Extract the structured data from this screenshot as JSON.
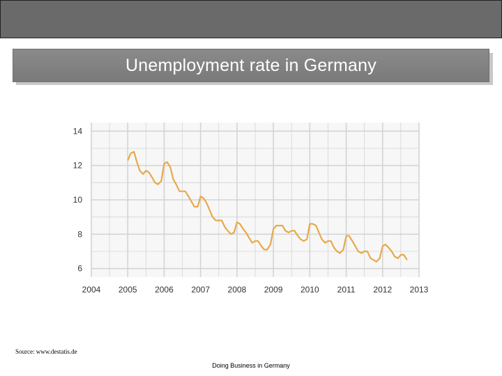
{
  "slide": {
    "title": "Unemployment rate in Germany",
    "source": "Source: www.destatis.de",
    "footer": "Doing Business in Germany"
  },
  "colors": {
    "line": "#e8a94a",
    "grid": "#d4d4d4",
    "plot_background": "#f7f7f7",
    "header_bar": "#6a6a6a",
    "title_box": "#808080"
  },
  "chart_data": {
    "type": "line",
    "title": "",
    "xlabel": "",
    "ylabel": "",
    "xlim": [
      2004,
      2013
    ],
    "ylim": [
      5.5,
      14.5
    ],
    "x_ticks": [
      "2004",
      "2005",
      "2006",
      "2007",
      "2008",
      "2009",
      "2010",
      "2011",
      "2012",
      "2013"
    ],
    "y_ticks": [
      "14",
      "12",
      "10",
      "8",
      "6"
    ],
    "grid": true,
    "legend": "none",
    "series": [
      {
        "x": [
          2005.0,
          2005.08,
          2005.17,
          2005.25,
          2005.33,
          2005.42,
          2005.5,
          2005.58,
          2005.67,
          2005.75,
          2005.83,
          2005.92,
          2006.0,
          2006.08,
          2006.17,
          2006.25,
          2006.33,
          2006.42,
          2006.5,
          2006.58,
          2006.67,
          2006.75,
          2006.83,
          2006.92,
          2007.0,
          2007.08,
          2007.17,
          2007.25,
          2007.33,
          2007.42,
          2007.5,
          2007.58,
          2007.67,
          2007.75,
          2007.83,
          2007.92,
          2008.0,
          2008.08,
          2008.17,
          2008.25,
          2008.33,
          2008.42,
          2008.5,
          2008.58,
          2008.67,
          2008.75,
          2008.83,
          2008.92,
          2009.0,
          2009.08,
          2009.17,
          2009.25,
          2009.33,
          2009.42,
          2009.5,
          2009.58,
          2009.67,
          2009.75,
          2009.83,
          2009.92,
          2010.0,
          2010.08,
          2010.17,
          2010.25,
          2010.33,
          2010.42,
          2010.5,
          2010.58,
          2010.67,
          2010.75,
          2010.83,
          2010.92,
          2011.0,
          2011.08,
          2011.17,
          2011.25,
          2011.33,
          2011.42,
          2011.5,
          2011.58,
          2011.67,
          2011.75,
          2011.83,
          2011.92,
          2012.0,
          2012.08,
          2012.17,
          2012.25,
          2012.33,
          2012.42,
          2012.5,
          2012.58,
          2012.67
        ],
        "y": [
          12.3,
          12.7,
          12.8,
          12.2,
          11.7,
          11.5,
          11.7,
          11.6,
          11.3,
          11.0,
          10.9,
          11.1,
          12.1,
          12.2,
          11.9,
          11.2,
          10.9,
          10.5,
          10.5,
          10.5,
          10.2,
          9.9,
          9.6,
          9.6,
          10.2,
          10.1,
          9.8,
          9.4,
          9.0,
          8.8,
          8.8,
          8.8,
          8.4,
          8.2,
          8.0,
          8.1,
          8.7,
          8.6,
          8.3,
          8.1,
          7.8,
          7.5,
          7.6,
          7.6,
          7.3,
          7.1,
          7.1,
          7.4,
          8.3,
          8.5,
          8.5,
          8.5,
          8.2,
          8.1,
          8.2,
          8.2,
          7.9,
          7.7,
          7.6,
          7.7,
          8.6,
          8.6,
          8.5,
          8.1,
          7.7,
          7.5,
          7.6,
          7.6,
          7.2,
          7.0,
          6.9,
          7.1,
          7.9,
          7.9,
          7.6,
          7.3,
          7.0,
          6.9,
          7.0,
          7.0,
          6.6,
          6.5,
          6.4,
          6.6,
          7.3,
          7.4,
          7.2,
          7.0,
          6.7,
          6.6,
          6.8,
          6.8,
          6.5
        ]
      }
    ]
  }
}
